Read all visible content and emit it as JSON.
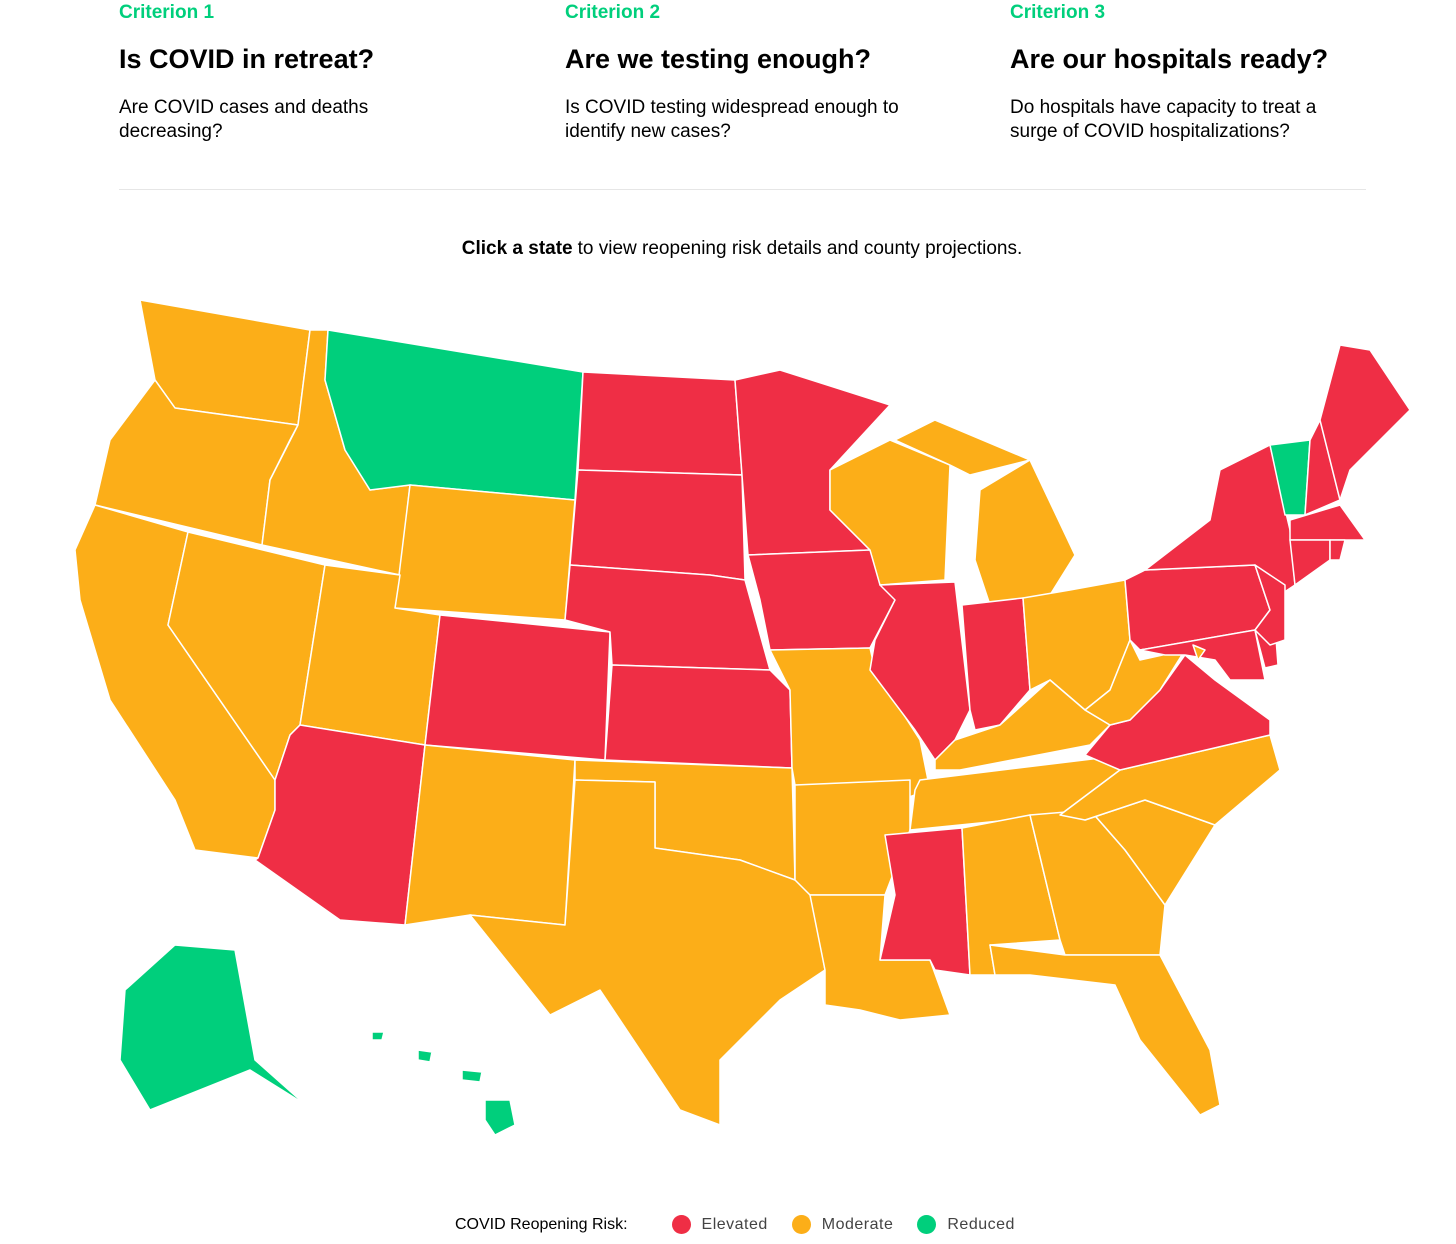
{
  "criteria": [
    {
      "label": "Criterion 1",
      "title": "Is COVID in retreat?",
      "description": "Are COVID cases and deaths decreasing?"
    },
    {
      "label": "Criterion 2",
      "title": "Are we testing enough?",
      "description": "Is COVID testing widespread enough to identify new cases?"
    },
    {
      "label": "Criterion 3",
      "title": "Are our hospitals ready?",
      "description": "Do hospitals have capacity to treat a surge of COVID hospitalizations?"
    }
  ],
  "instruction": {
    "bold": "Click a state",
    "text": "to view reopening risk details and county projections."
  },
  "legend": {
    "title": "COVID Reopening Risk:",
    "items": [
      {
        "label": "Elevated",
        "color": "#ef2e45"
      },
      {
        "label": "Moderate",
        "color": "#fcae18"
      },
      {
        "label": "Reduced",
        "color": "#00cf7c"
      }
    ]
  }
}
